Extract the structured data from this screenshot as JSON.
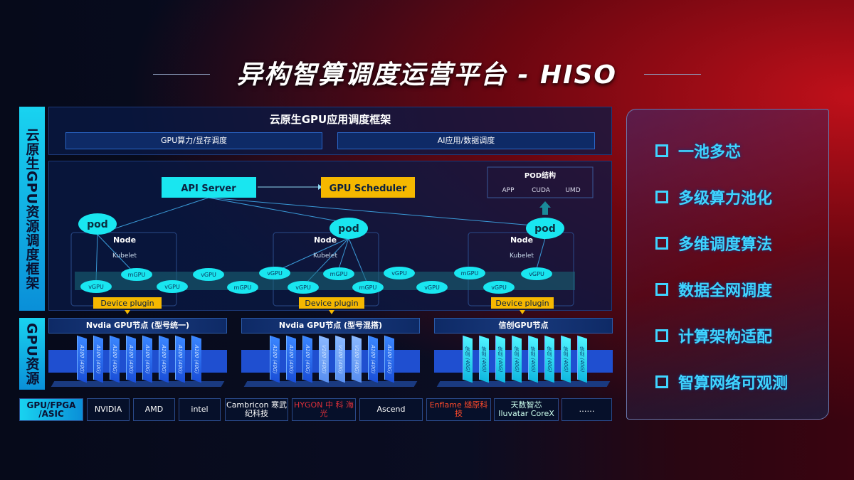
{
  "title": "异构智算调度运营平台 - HISO",
  "left_labels": {
    "framework": "云原生GPU资源调度框架",
    "resources": "GPU资源"
  },
  "top": {
    "heading": "云原生GPU应用调度框架",
    "boxes": [
      "GPU算力/显存调度",
      "AI应用/数据调度"
    ]
  },
  "diagram": {
    "api_server": "API Server",
    "gpu_scheduler": "GPU Scheduler",
    "pod_structure": {
      "title": "POD结构",
      "items": [
        "APP",
        "CUDA",
        "UMD"
      ]
    },
    "pod": "pod",
    "node": "Node",
    "kubelet": "Kubelet",
    "device_plugin": "Device plugin",
    "gpus": [
      "vGPU",
      "mGPU",
      "vGPU",
      "vGPU",
      "mGPU",
      "vGPU",
      "vGPU",
      "mGPU",
      "mGPU",
      "vGPU",
      "vGPU",
      "mGPU",
      "vGPU",
      "vGPU"
    ]
  },
  "gpu_nodes": [
    {
      "title": "Nvdia GPU节点 (型号统一)",
      "cards": [
        "A100 (40G)",
        "A100 (40G)",
        "A100 (40G)",
        "A100 (40G)",
        "A100 (40G)",
        "A100 (40G)",
        "A100 (40G)",
        "A100 (40G)"
      ]
    },
    {
      "title": "Nvdia GPU节点 (型号混搭)",
      "cards": [
        "A100 (40G)",
        "A100 (40G)",
        "A100 (40G)",
        "V100 (40G)",
        "V100 (40G)",
        "V100 (40G)",
        "A100 (40G)",
        "A100 (40G)"
      ]
    },
    {
      "title": "信创GPU节点",
      "cards": [
        "信创 (40G)",
        "信创 (40G)",
        "信创 (40G)",
        "信创 (40G)",
        "信创 (40G)",
        "信创 (40G)",
        "信创 (40G)",
        "信创 (40G)"
      ]
    }
  ],
  "vendors": {
    "label": "GPU/FPGA /ASIC",
    "items": [
      "NVIDIA",
      "AMD",
      "intel",
      "Cambricon 寒武纪科技",
      "HYGON 中 科 海 光",
      "Ascend",
      "Enflame 燧原科技",
      "天数智芯 Iluvatar CoreX",
      "……"
    ]
  },
  "features": [
    "一池多芯",
    "多级算力池化",
    "多维调度算法",
    "数据全网调度",
    "计算架构适配",
    "智算网络可观测"
  ],
  "colors": {
    "cyan": "#19e6f0",
    "orange": "#f5b800",
    "panel": "#0a1946",
    "accent_red": "#c0101a"
  }
}
